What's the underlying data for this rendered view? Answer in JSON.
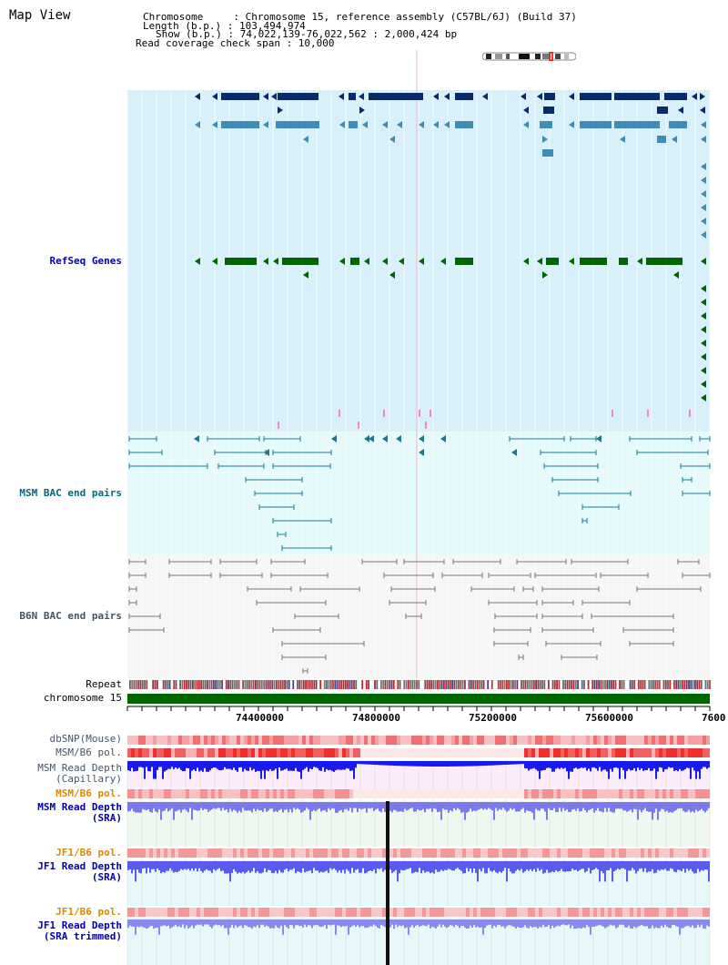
{
  "header": {
    "title": "Map View",
    "chromosome_line": "Chromosome     : Chromosome 15, reference assembly (C57BL/6J) (Build 37)",
    "length_line": "Length (b.p.) : 103,494,974",
    "show_line": "Show (b.p.) : 74,022,139-76,022,562 : 2,000,424 bp",
    "coverage_line": "Read coverage check span : 10,000"
  },
  "tracks": {
    "refseq_label": "RefSeq Genes",
    "msm_bac_label": "MSM BAC end pairs",
    "b6n_bac_label": "B6N BAC end pairs",
    "repeat_label": "Repeat",
    "chromosome_label": "chromosome 15",
    "dbsnp_label": "dbSNP(Mouse)",
    "msm_b6_pol_label": "MSM/B6 pol.",
    "msm_depth_cap_label_1": "MSM Read Depth",
    "msm_depth_cap_label_2": "(Capillary)",
    "msm_b6_pol2_label": "MSM/B6 pol.",
    "msm_depth_sra_label_1": "MSM Read Depth",
    "msm_depth_sra_label_2": "(SRA)",
    "jf1_b6_pol_label": "JF1/B6 pol.",
    "jf1_depth_sra_label_1": "JF1 Read Depth",
    "jf1_depth_sra_label_2": "(SRA)",
    "jf1_b6_pol2_label": "JF1/B6 pol.",
    "jf1_depth_trim_label_1": "JF1 Read Depth",
    "jf1_depth_trim_label_2": "(SRA trimmed)"
  },
  "axis": {
    "ticks": [
      "74400000",
      "74800000",
      "75200000",
      "75600000",
      "7600"
    ]
  },
  "colors": {
    "refseq_bg": "#d9f0fb",
    "msm_bg": "#e6fafc",
    "b6n_bg": "#f6f6f6",
    "cap_bg": "#fbecfb",
    "sra_bg": "#eef8ee",
    "jf1_bg": "#e6f8fa",
    "gene_dark": "#0a2b6b",
    "gene_mid": "#3e8db3",
    "gene_green": "#006600",
    "label_blue": "#0000aa",
    "label_teal": "#006a7a",
    "label_gray": "#445566",
    "label_orange": "#dd8800"
  }
}
